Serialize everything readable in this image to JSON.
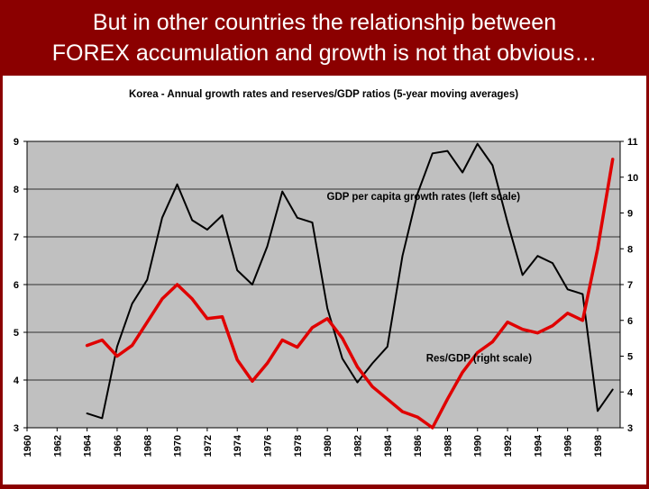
{
  "slide": {
    "title_line1": "But in other countries the relationship between",
    "title_line2": "FOREX accumulation and growth is not that obvious…"
  },
  "chart_data": {
    "type": "line",
    "title": "Korea  - Annual growth rates and reserves/GDP ratios (5-year moving averages)",
    "x_ticks": [
      "1960",
      "1962",
      "1964",
      "1966",
      "1968",
      "1970",
      "1972",
      "1974",
      "1976",
      "1978",
      "1980",
      "1982",
      "1984",
      "1986",
      "1988",
      "1990",
      "1992",
      "1994",
      "1996",
      "1998"
    ],
    "xlim": [
      1960,
      1999.5
    ],
    "y_left": {
      "lim": [
        3,
        9
      ],
      "ticks": [
        "3",
        "4",
        "5",
        "6",
        "7",
        "8",
        "9"
      ]
    },
    "y_right": {
      "lim": [
        3,
        11
      ],
      "ticks": [
        "3",
        "4",
        "5",
        "6",
        "7",
        "8",
        "9",
        "10",
        "11"
      ]
    },
    "grid": "horizontal",
    "plot_background": "#c0c0c0",
    "series": [
      {
        "name": "GDP per capita growth rates (left scale)",
        "axis": "left",
        "color": "#000000",
        "x": [
          1964,
          1965,
          1966,
          1967,
          1968,
          1969,
          1970,
          1971,
          1972,
          1973,
          1974,
          1975,
          1976,
          1977,
          1978,
          1979,
          1980,
          1981,
          1982,
          1983,
          1984,
          1985,
          1986,
          1987,
          1988,
          1989,
          1990,
          1991,
          1992,
          1993,
          1994,
          1995,
          1996,
          1997,
          1998,
          1999
        ],
        "y": [
          3.3,
          3.2,
          4.7,
          5.6,
          6.1,
          7.4,
          8.1,
          7.35,
          7.15,
          7.45,
          6.3,
          6.0,
          6.8,
          7.95,
          7.4,
          7.3,
          5.5,
          4.45,
          3.95,
          4.35,
          4.7,
          6.6,
          7.9,
          8.75,
          8.8,
          8.35,
          8.95,
          8.5,
          7.3,
          6.2,
          6.6,
          6.45,
          5.9,
          5.8,
          3.35,
          3.8
        ]
      },
      {
        "name": "Res/GDP (right scale)",
        "axis": "right",
        "color": "#e00000",
        "x": [
          1964,
          1965,
          1966,
          1967,
          1968,
          1969,
          1970,
          1971,
          1972,
          1973,
          1974,
          1975,
          1976,
          1977,
          1978,
          1979,
          1980,
          1981,
          1982,
          1983,
          1984,
          1985,
          1986,
          1987,
          1988,
          1989,
          1990,
          1991,
          1992,
          1993,
          1994,
          1995,
          1996,
          1997,
          1998,
          1999
        ],
        "y": [
          5.3,
          5.45,
          5.0,
          5.3,
          5.95,
          6.6,
          7.0,
          6.6,
          6.05,
          6.1,
          4.9,
          4.3,
          4.8,
          5.45,
          5.25,
          5.8,
          6.05,
          5.5,
          4.7,
          4.15,
          3.8,
          3.45,
          3.3,
          3.0,
          3.8,
          4.55,
          5.1,
          5.4,
          5.95,
          5.75,
          5.65,
          5.85,
          6.2,
          6.0,
          8.0,
          10.5
        ]
      }
    ],
    "annotations": [
      {
        "text": "GDP per capita growth rates (left scale)",
        "x": 1986.4,
        "y": 7.77,
        "axis": "left"
      },
      {
        "text": "Res/GDP (right scale)",
        "x": 1990.1,
        "y": 4.85,
        "axis": "right"
      }
    ]
  }
}
